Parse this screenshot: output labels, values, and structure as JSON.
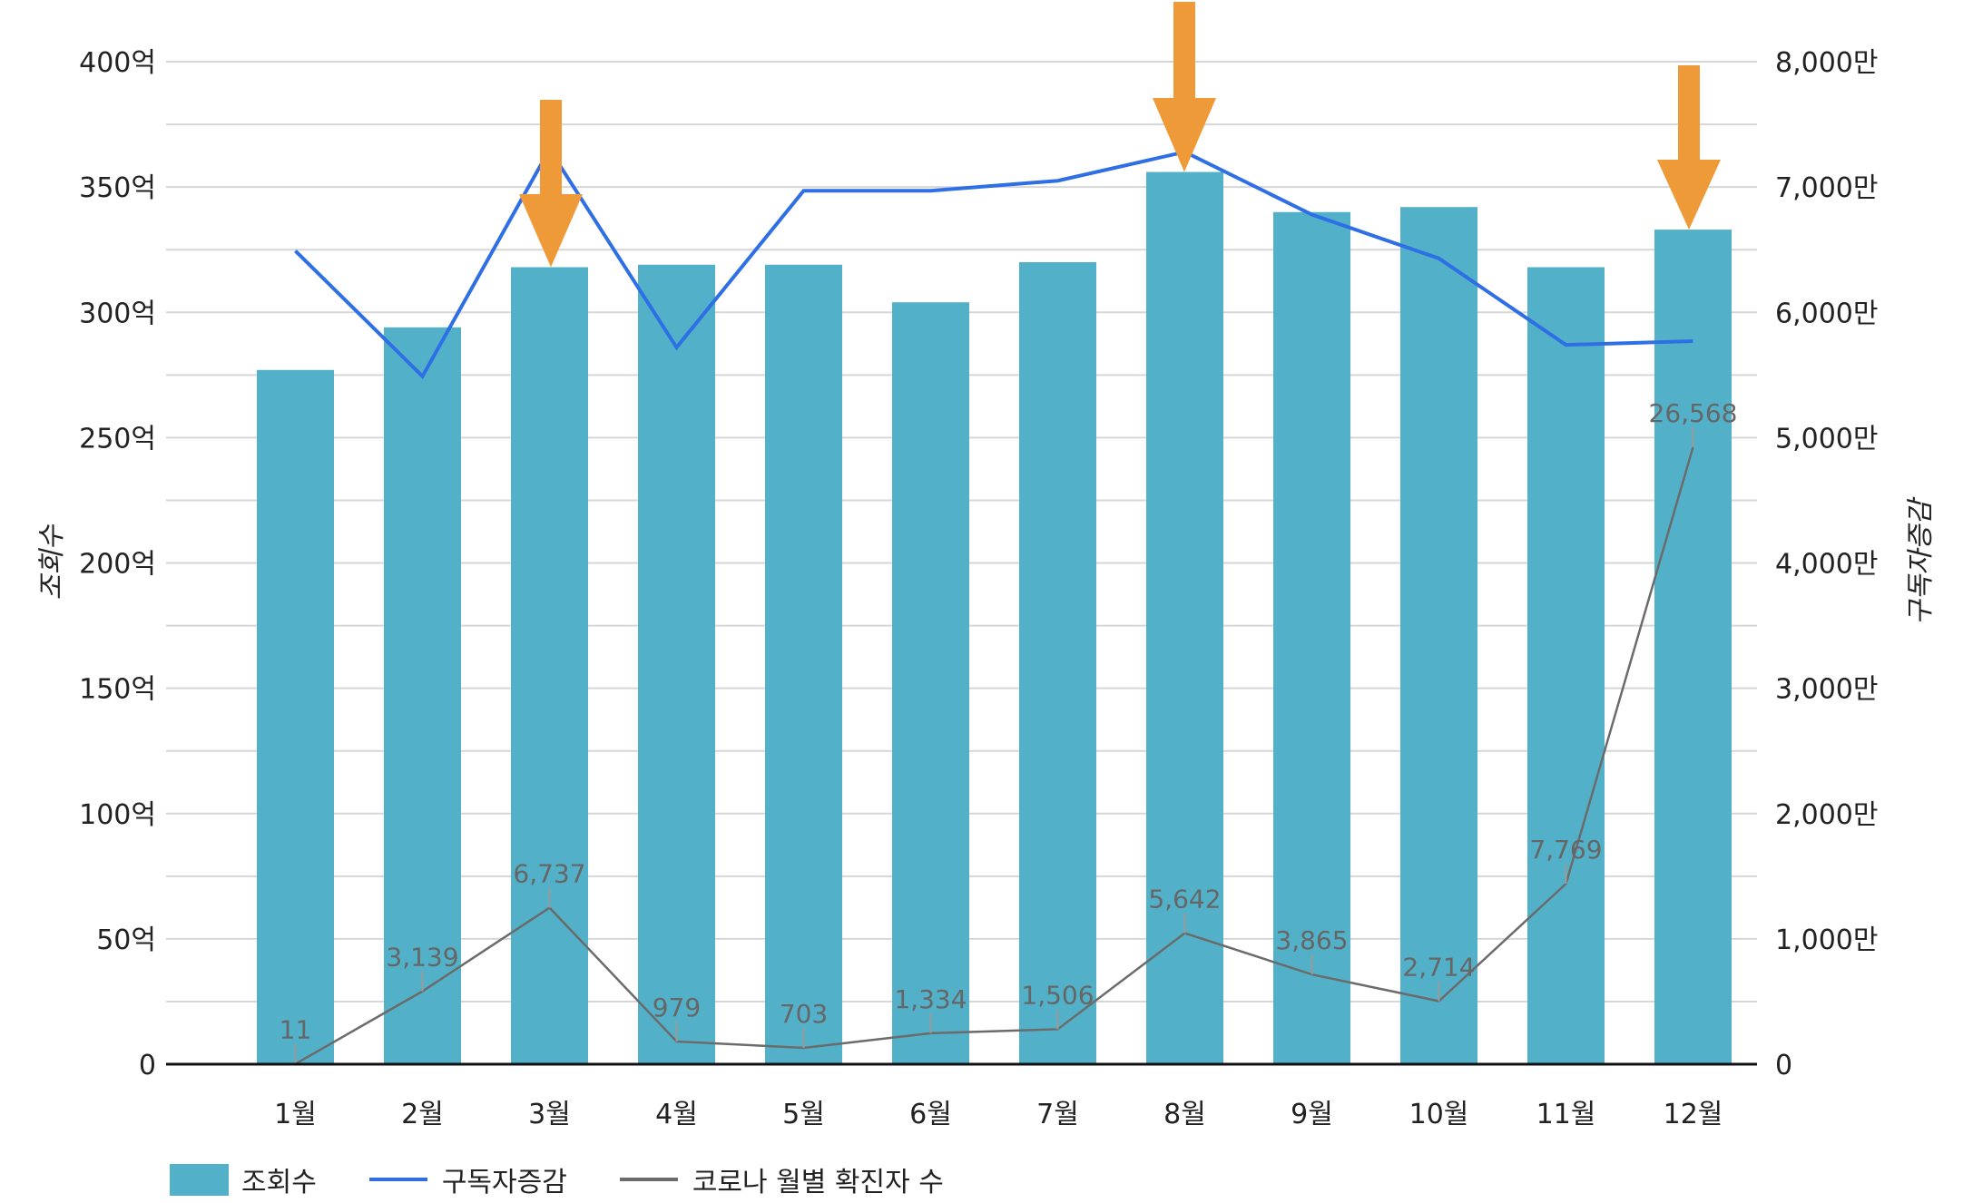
{
  "chart_data": {
    "type": "bar",
    "title": "",
    "xlabel": "",
    "ylabel": "조회수",
    "y2label": "구독자증감",
    "categories": [
      "1월",
      "2월",
      "3월",
      "4월",
      "5월",
      "6월",
      "7월",
      "8월",
      "9월",
      "10월",
      "11월",
      "12월"
    ],
    "ylim": [
      0,
      400
    ],
    "y2lim": [
      0,
      8000
    ],
    "y_ticks": [
      "0",
      "50억",
      "100억",
      "150억",
      "200억",
      "250억",
      "300억",
      "350억",
      "400억"
    ],
    "y2_ticks": [
      "0",
      "1,000만",
      "2,000만",
      "3,000만",
      "4,000만",
      "5,000만",
      "6,000만",
      "7,000만",
      "8,000만"
    ],
    "grid": true,
    "legend_position": "bottom",
    "series": [
      {
        "name": "조회수",
        "type": "bar",
        "axis": "left",
        "unit": "억",
        "color": "#52B1C8",
        "values": [
          277,
          294,
          318,
          319,
          319,
          304,
          320,
          356,
          340,
          342,
          318,
          333
        ]
      },
      {
        "name": "구독자증감",
        "type": "line",
        "axis": "right",
        "unit": "만",
        "color": "#2F6FE6",
        "values": [
          6490,
          5490,
          7300,
          5720,
          6970,
          6970,
          7050,
          7280,
          6780,
          6430,
          5740,
          5770
        ]
      },
      {
        "name": "코로나 월별 확진자 수",
        "type": "line",
        "axis": "hidden",
        "color": "#6B6B6B",
        "values": [
          11,
          3139,
          6737,
          979,
          703,
          1334,
          1506,
          5642,
          3865,
          2714,
          7769,
          26568
        ],
        "data_labels": [
          "11",
          "3,139",
          "6,737",
          "979",
          "703",
          "1,334",
          "1,506",
          "5,642",
          "3,865",
          "2,714",
          "7,769",
          "26,568"
        ]
      }
    ],
    "annotations": [
      {
        "type": "arrow-down",
        "color": "#EF9A38",
        "target": "3월"
      },
      {
        "type": "arrow-down",
        "color": "#EF9A38",
        "target": "8월"
      },
      {
        "type": "arrow-down",
        "color": "#EF9A38",
        "target": "12월"
      }
    ]
  },
  "legend": {
    "items": [
      {
        "label": "조회수",
        "kind": "swatch",
        "color": "#52B1C8"
      },
      {
        "label": "구독자증감",
        "kind": "line",
        "color": "#2F6FE6"
      },
      {
        "label": "코로나 월별 확진자 수",
        "kind": "line",
        "color": "#6B6B6B"
      }
    ]
  },
  "colors": {
    "grid": "#D6D6D6",
    "axis": "#111111",
    "arrow": "#EF9A38"
  }
}
